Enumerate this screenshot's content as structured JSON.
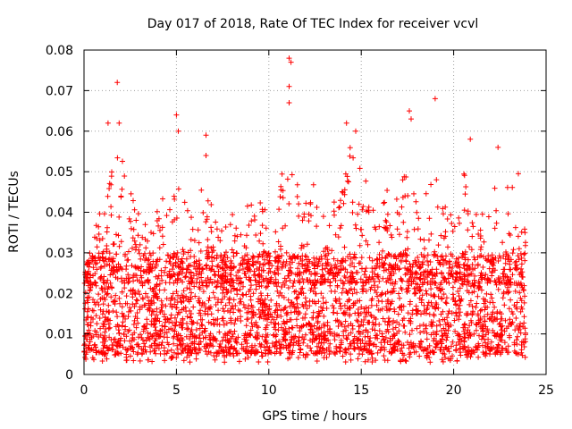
{
  "chart_data": {
    "type": "scatter",
    "title": "Day 017 of 2018, Rate Of TEC Index for receiver vcvl",
    "xlabel": "GPS time / hours",
    "ylabel": "ROTI / TECUs",
    "xlim": [
      0,
      25
    ],
    "ylim": [
      0,
      0.08
    ],
    "xticks": [
      0,
      5,
      10,
      15,
      20,
      25
    ],
    "yticks": [
      0,
      0.01,
      0.02,
      0.03,
      0.04,
      0.05,
      0.06,
      0.07,
      0.08
    ],
    "xtick_labels": [
      "0",
      "5",
      "10",
      "15",
      "20",
      "25"
    ],
    "ytick_labels": [
      "0",
      "0.01",
      "0.02",
      "0.03",
      "0.04",
      "0.05",
      "0.06",
      "0.07",
      "0.08"
    ],
    "grid": true,
    "marker": "+",
    "series": [
      {
        "name": "ROTI",
        "color": "#ff0000",
        "x_range": [
          0,
          23.9
        ],
        "typical_band": [
          0.005,
          0.03
        ],
        "envelope": [
          [
            0.0,
            0.025
          ],
          [
            0.5,
            0.033
          ],
          [
            1.0,
            0.045
          ],
          [
            1.5,
            0.05
          ],
          [
            2.0,
            0.06
          ],
          [
            2.5,
            0.045
          ],
          [
            3.0,
            0.04
          ],
          [
            3.5,
            0.036
          ],
          [
            4.0,
            0.05
          ],
          [
            4.5,
            0.045
          ],
          [
            5.0,
            0.055
          ],
          [
            5.5,
            0.042
          ],
          [
            6.0,
            0.038
          ],
          [
            6.5,
            0.05
          ],
          [
            7.0,
            0.04
          ],
          [
            7.5,
            0.036
          ],
          [
            8.0,
            0.04
          ],
          [
            8.5,
            0.038
          ],
          [
            9.0,
            0.045
          ],
          [
            9.5,
            0.044
          ],
          [
            10.0,
            0.042
          ],
          [
            10.5,
            0.048
          ],
          [
            11.0,
            0.058
          ],
          [
            11.5,
            0.047
          ],
          [
            12.0,
            0.045
          ],
          [
            12.5,
            0.052
          ],
          [
            13.0,
            0.04
          ],
          [
            13.5,
            0.042
          ],
          [
            14.0,
            0.05
          ],
          [
            14.5,
            0.058
          ],
          [
            15.0,
            0.055
          ],
          [
            15.5,
            0.042
          ],
          [
            16.0,
            0.04
          ],
          [
            16.5,
            0.048
          ],
          [
            17.0,
            0.045
          ],
          [
            17.5,
            0.052
          ],
          [
            18.0,
            0.05
          ],
          [
            18.5,
            0.047
          ],
          [
            19.0,
            0.05
          ],
          [
            19.5,
            0.045
          ],
          [
            20.0,
            0.043
          ],
          [
            20.5,
            0.055
          ],
          [
            21.0,
            0.04
          ],
          [
            21.5,
            0.04
          ],
          [
            22.0,
            0.042
          ],
          [
            22.5,
            0.053
          ],
          [
            23.0,
            0.045
          ],
          [
            23.5,
            0.05
          ],
          [
            23.9,
            0.035
          ]
        ],
        "outliers": [
          {
            "x": 1.3,
            "y": 0.062
          },
          {
            "x": 1.8,
            "y": 0.072
          },
          {
            "x": 1.9,
            "y": 0.062
          },
          {
            "x": 5.0,
            "y": 0.064
          },
          {
            "x": 5.1,
            "y": 0.06
          },
          {
            "x": 6.6,
            "y": 0.059
          },
          {
            "x": 6.6,
            "y": 0.054
          },
          {
            "x": 11.1,
            "y": 0.078
          },
          {
            "x": 11.2,
            "y": 0.077
          },
          {
            "x": 11.1,
            "y": 0.071
          },
          {
            "x": 11.1,
            "y": 0.067
          },
          {
            "x": 14.2,
            "y": 0.062
          },
          {
            "x": 14.7,
            "y": 0.06
          },
          {
            "x": 17.6,
            "y": 0.065
          },
          {
            "x": 17.7,
            "y": 0.063
          },
          {
            "x": 19.0,
            "y": 0.068
          },
          {
            "x": 20.9,
            "y": 0.058
          },
          {
            "x": 22.4,
            "y": 0.056
          }
        ]
      }
    ]
  }
}
